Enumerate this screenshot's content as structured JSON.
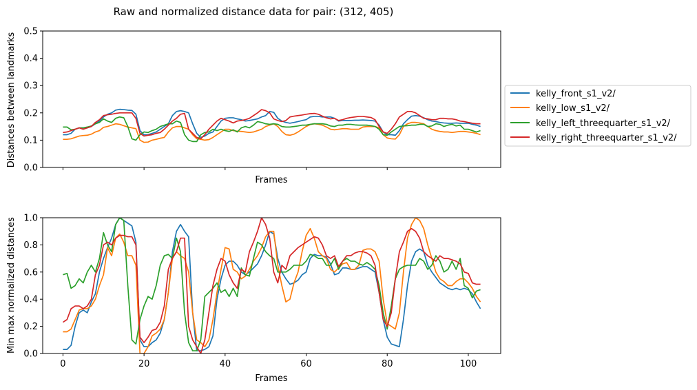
{
  "title": "Raw and normalized distance data for pair: (312, 405)",
  "colors": {
    "kelly_front_s1_v2/": "#1f77b4",
    "kelly_low_s1_v2/": "#ff7f0e",
    "kelly_left_threequarter_s1_v2/": "#2ca02c",
    "kelly_right_threequarter_s1_v2/": "#d62728"
  },
  "chart_data": [
    {
      "type": "line",
      "title": "",
      "xlabel": "Frames",
      "ylabel": "Distances between landmarks",
      "xlim": [
        -5,
        108
      ],
      "ylim": [
        0.0,
        0.5
      ],
      "yticks": [
        "0.0",
        "0.1",
        "0.2",
        "0.3",
        "0.4",
        "0.5"
      ],
      "xticks_shown": false,
      "legend_position": "outside-right",
      "series": [
        {
          "name": "kelly_front_s1_v2/",
          "values": [
            0.12,
            0.12,
            0.125,
            0.14,
            0.145,
            0.145,
            0.145,
            0.15,
            0.16,
            0.17,
            0.185,
            0.195,
            0.2,
            0.21,
            0.213,
            0.212,
            0.21,
            0.209,
            0.195,
            0.135,
            0.12,
            0.12,
            0.125,
            0.13,
            0.14,
            0.15,
            0.16,
            0.19,
            0.205,
            0.208,
            0.205,
            0.2,
            0.16,
            0.125,
            0.11,
            0.115,
            0.125,
            0.13,
            0.15,
            0.17,
            0.18,
            0.182,
            0.182,
            0.178,
            0.175,
            0.17,
            0.172,
            0.175,
            0.178,
            0.185,
            0.19,
            0.205,
            0.202,
            0.18,
            0.17,
            0.165,
            0.162,
            0.165,
            0.168,
            0.172,
            0.175,
            0.185,
            0.187,
            0.187,
            0.185,
            0.185,
            0.185,
            0.18,
            0.17,
            0.172,
            0.172,
            0.172,
            0.173,
            0.173,
            0.174,
            0.173,
            0.172,
            0.17,
            0.155,
            0.13,
            0.12,
            0.12,
            0.118,
            0.135,
            0.16,
            0.175,
            0.188,
            0.19,
            0.188,
            0.182,
            0.175,
            0.17,
            0.168,
            0.165,
            0.163,
            0.162,
            0.162,
            0.163,
            0.162,
            0.162,
            0.162,
            0.158,
            0.155,
            0.15
          ]
        },
        {
          "name": "kelly_low_s1_v2/",
          "values": [
            0.103,
            0.103,
            0.105,
            0.11,
            0.115,
            0.117,
            0.118,
            0.122,
            0.13,
            0.135,
            0.147,
            0.15,
            0.155,
            0.16,
            0.158,
            0.153,
            0.148,
            0.145,
            0.142,
            0.1,
            0.092,
            0.093,
            0.1,
            0.103,
            0.107,
            0.11,
            0.13,
            0.145,
            0.15,
            0.15,
            0.145,
            0.14,
            0.12,
            0.105,
            0.103,
            0.1,
            0.102,
            0.11,
            0.12,
            0.13,
            0.14,
            0.14,
            0.135,
            0.133,
            0.132,
            0.13,
            0.128,
            0.13,
            0.135,
            0.14,
            0.15,
            0.155,
            0.16,
            0.15,
            0.132,
            0.12,
            0.118,
            0.122,
            0.13,
            0.14,
            0.15,
            0.157,
            0.16,
            0.158,
            0.155,
            0.148,
            0.14,
            0.138,
            0.14,
            0.142,
            0.142,
            0.14,
            0.14,
            0.14,
            0.148,
            0.15,
            0.15,
            0.15,
            0.145,
            0.12,
            0.108,
            0.105,
            0.104,
            0.12,
            0.15,
            0.16,
            0.165,
            0.165,
            0.163,
            0.16,
            0.15,
            0.14,
            0.135,
            0.132,
            0.13,
            0.13,
            0.128,
            0.13,
            0.132,
            0.132,
            0.13,
            0.128,
            0.125,
            0.12
          ]
        },
        {
          "name": "kelly_left_threequarter_s1_v2/",
          "values": [
            0.148,
            0.148,
            0.138,
            0.14,
            0.145,
            0.145,
            0.148,
            0.152,
            0.16,
            0.165,
            0.178,
            0.17,
            0.165,
            0.18,
            0.185,
            0.182,
            0.15,
            0.105,
            0.1,
            0.12,
            0.13,
            0.128,
            0.135,
            0.14,
            0.15,
            0.155,
            0.16,
            0.16,
            0.17,
            0.165,
            0.12,
            0.1,
            0.095,
            0.095,
            0.12,
            0.128,
            0.13,
            0.14,
            0.135,
            0.14,
            0.135,
            0.132,
            0.138,
            0.13,
            0.145,
            0.15,
            0.145,
            0.155,
            0.168,
            0.165,
            0.16,
            0.158,
            0.16,
            0.158,
            0.15,
            0.148,
            0.148,
            0.15,
            0.152,
            0.155,
            0.155,
            0.158,
            0.16,
            0.16,
            0.16,
            0.158,
            0.152,
            0.15,
            0.155,
            0.155,
            0.158,
            0.158,
            0.156,
            0.155,
            0.155,
            0.155,
            0.153,
            0.15,
            0.14,
            0.12,
            0.118,
            0.13,
            0.14,
            0.15,
            0.152,
            0.153,
            0.155,
            0.155,
            0.158,
            0.158,
            0.15,
            0.152,
            0.16,
            0.158,
            0.15,
            0.155,
            0.158,
            0.152,
            0.155,
            0.14,
            0.14,
            0.135,
            0.13,
            0.135
          ]
        },
        {
          "name": "kelly_right_threequarter_s1_v2/",
          "values": [
            0.128,
            0.13,
            0.135,
            0.14,
            0.145,
            0.14,
            0.145,
            0.15,
            0.165,
            0.175,
            0.19,
            0.193,
            0.195,
            0.198,
            0.2,
            0.2,
            0.2,
            0.2,
            0.18,
            0.125,
            0.115,
            0.118,
            0.12,
            0.125,
            0.128,
            0.14,
            0.155,
            0.17,
            0.18,
            0.195,
            0.198,
            0.14,
            0.125,
            0.11,
            0.105,
            0.12,
            0.14,
            0.155,
            0.17,
            0.18,
            0.175,
            0.17,
            0.163,
            0.17,
            0.172,
            0.175,
            0.18,
            0.19,
            0.2,
            0.212,
            0.208,
            0.2,
            0.178,
            0.172,
            0.168,
            0.172,
            0.185,
            0.188,
            0.19,
            0.192,
            0.195,
            0.197,
            0.198,
            0.195,
            0.188,
            0.182,
            0.178,
            0.18,
            0.172,
            0.175,
            0.18,
            0.183,
            0.185,
            0.187,
            0.187,
            0.185,
            0.183,
            0.175,
            0.15,
            0.13,
            0.125,
            0.14,
            0.16,
            0.185,
            0.195,
            0.205,
            0.205,
            0.2,
            0.19,
            0.18,
            0.178,
            0.175,
            0.175,
            0.18,
            0.18,
            0.178,
            0.178,
            0.175,
            0.17,
            0.168,
            0.165,
            0.162,
            0.16,
            0.16
          ]
        }
      ]
    },
    {
      "type": "line",
      "title": "",
      "xlabel": "Frames",
      "ylabel": "Min max normalized distances",
      "xlim": [
        -5,
        108
      ],
      "ylim": [
        0.0,
        1.0
      ],
      "xticks": [
        "0",
        "20",
        "40",
        "60",
        "80",
        "100"
      ],
      "yticks": [
        "0.0",
        "0.2",
        "0.4",
        "0.6",
        "0.8",
        "1.0"
      ],
      "series": [
        {
          "name": "kelly_front_s1_v2/",
          "values": [
            0.03,
            0.03,
            0.06,
            0.2,
            0.3,
            0.32,
            0.3,
            0.38,
            0.44,
            0.6,
            0.7,
            0.78,
            0.85,
            0.95,
            1.0,
            0.98,
            0.96,
            0.94,
            0.82,
            0.1,
            0.05,
            0.05,
            0.08,
            0.1,
            0.15,
            0.25,
            0.45,
            0.75,
            0.9,
            0.95,
            0.9,
            0.86,
            0.3,
            0.02,
            0.02,
            0.03,
            0.05,
            0.13,
            0.4,
            0.55,
            0.65,
            0.68,
            0.68,
            0.65,
            0.6,
            0.58,
            0.6,
            0.63,
            0.66,
            0.72,
            0.8,
            0.9,
            0.88,
            0.7,
            0.6,
            0.55,
            0.51,
            0.52,
            0.54,
            0.58,
            0.6,
            0.7,
            0.73,
            0.72,
            0.72,
            0.71,
            0.66,
            0.58,
            0.59,
            0.63,
            0.63,
            0.62,
            0.62,
            0.63,
            0.64,
            0.64,
            0.62,
            0.6,
            0.45,
            0.25,
            0.12,
            0.07,
            0.06,
            0.05,
            0.25,
            0.5,
            0.68,
            0.75,
            0.77,
            0.75,
            0.65,
            0.6,
            0.56,
            0.52,
            0.5,
            0.48,
            0.47,
            0.48,
            0.47,
            0.48,
            0.47,
            0.44,
            0.38,
            0.33
          ]
        },
        {
          "name": "kelly_low_s1_v2/",
          "values": [
            0.16,
            0.16,
            0.18,
            0.25,
            0.32,
            0.33,
            0.33,
            0.35,
            0.4,
            0.5,
            0.58,
            0.78,
            0.72,
            0.85,
            0.88,
            0.82,
            0.72,
            0.72,
            0.65,
            0.0,
            0.0,
            0.05,
            0.13,
            0.15,
            0.18,
            0.25,
            0.45,
            0.7,
            0.75,
            0.72,
            0.7,
            0.6,
            0.3,
            0.1,
            0.08,
            0.05,
            0.1,
            0.25,
            0.45,
            0.62,
            0.78,
            0.77,
            0.62,
            0.6,
            0.55,
            0.57,
            0.62,
            0.68,
            0.72,
            0.78,
            0.86,
            0.9,
            0.9,
            0.65,
            0.5,
            0.38,
            0.4,
            0.52,
            0.6,
            0.75,
            0.87,
            0.92,
            0.85,
            0.75,
            0.72,
            0.7,
            0.62,
            0.6,
            0.63,
            0.66,
            0.67,
            0.62,
            0.62,
            0.65,
            0.76,
            0.77,
            0.77,
            0.75,
            0.68,
            0.4,
            0.22,
            0.2,
            0.18,
            0.3,
            0.6,
            0.85,
            0.95,
            1.0,
            0.98,
            0.92,
            0.8,
            0.7,
            0.6,
            0.55,
            0.53,
            0.5,
            0.5,
            0.53,
            0.55,
            0.55,
            0.52,
            0.48,
            0.42,
            0.38
          ]
        },
        {
          "name": "kelly_left_threequarter_s1_v2/",
          "values": [
            0.58,
            0.59,
            0.48,
            0.5,
            0.55,
            0.52,
            0.6,
            0.65,
            0.6,
            0.7,
            0.89,
            0.8,
            0.75,
            0.95,
            1.0,
            0.98,
            0.5,
            0.1,
            0.07,
            0.25,
            0.35,
            0.42,
            0.4,
            0.5,
            0.65,
            0.72,
            0.73,
            0.7,
            0.85,
            0.75,
            0.3,
            0.08,
            0.02,
            0.02,
            0.1,
            0.42,
            0.45,
            0.48,
            0.52,
            0.45,
            0.47,
            0.42,
            0.48,
            0.42,
            0.63,
            0.58,
            0.57,
            0.7,
            0.82,
            0.8,
            0.75,
            0.72,
            0.7,
            0.6,
            0.6,
            0.6,
            0.62,
            0.65,
            0.65,
            0.65,
            0.68,
            0.73,
            0.72,
            0.7,
            0.7,
            0.65,
            0.65,
            0.7,
            0.62,
            0.68,
            0.7,
            0.68,
            0.68,
            0.66,
            0.65,
            0.67,
            0.65,
            0.62,
            0.5,
            0.3,
            0.18,
            0.35,
            0.55,
            0.62,
            0.64,
            0.65,
            0.65,
            0.65,
            0.7,
            0.68,
            0.62,
            0.65,
            0.72,
            0.68,
            0.6,
            0.62,
            0.68,
            0.62,
            0.7,
            0.5,
            0.48,
            0.41,
            0.46,
            0.47
          ]
        },
        {
          "name": "kelly_right_threequarter_s1_v2/",
          "values": [
            0.23,
            0.25,
            0.33,
            0.35,
            0.35,
            0.33,
            0.35,
            0.4,
            0.58,
            0.65,
            0.8,
            0.82,
            0.8,
            0.85,
            0.87,
            0.87,
            0.86,
            0.86,
            0.8,
            0.12,
            0.08,
            0.12,
            0.17,
            0.18,
            0.23,
            0.35,
            0.62,
            0.7,
            0.75,
            0.85,
            0.85,
            0.2,
            0.1,
            0.05,
            0.0,
            0.1,
            0.3,
            0.5,
            0.62,
            0.7,
            0.68,
            0.58,
            0.52,
            0.48,
            0.62,
            0.6,
            0.75,
            0.82,
            0.9,
            1.0,
            0.95,
            0.85,
            0.6,
            0.52,
            0.65,
            0.62,
            0.72,
            0.75,
            0.78,
            0.8,
            0.82,
            0.84,
            0.86,
            0.85,
            0.8,
            0.72,
            0.7,
            0.72,
            0.64,
            0.68,
            0.72,
            0.72,
            0.74,
            0.75,
            0.75,
            0.74,
            0.72,
            0.65,
            0.45,
            0.25,
            0.2,
            0.3,
            0.55,
            0.75,
            0.82,
            0.9,
            0.92,
            0.9,
            0.85,
            0.75,
            0.72,
            0.7,
            0.68,
            0.72,
            0.7,
            0.7,
            0.69,
            0.68,
            0.66,
            0.6,
            0.59,
            0.52,
            0.51,
            0.51
          ]
        }
      ]
    }
  ]
}
